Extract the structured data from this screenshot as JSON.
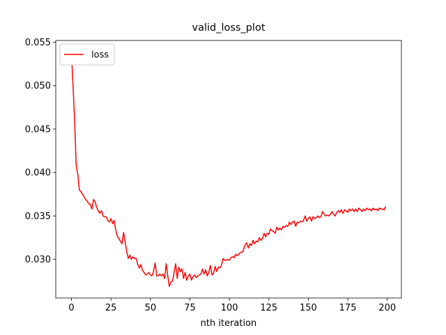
{
  "chart_data": {
    "type": "line",
    "title": "valid_loss_plot",
    "x_label": "nth iteration",
    "legend": "upper left",
    "grid": false,
    "x": [
      0,
      1,
      2,
      3,
      4,
      5,
      6,
      7,
      8,
      9,
      10,
      11,
      12,
      13,
      14,
      15,
      16,
      17,
      18,
      19,
      20,
      21,
      22,
      23,
      24,
      25,
      26,
      27,
      28,
      29,
      30,
      31,
      32,
      33,
      34,
      35,
      36,
      37,
      38,
      39,
      40,
      41,
      42,
      43,
      44,
      45,
      46,
      47,
      48,
      49,
      50,
      51,
      52,
      53,
      54,
      55,
      56,
      57,
      58,
      59,
      60,
      61,
      62,
      63,
      64,
      65,
      66,
      67,
      68,
      69,
      70,
      71,
      72,
      73,
      74,
      75,
      76,
      77,
      78,
      79,
      80,
      81,
      82,
      83,
      84,
      85,
      86,
      87,
      88,
      89,
      90,
      91,
      92,
      93,
      94,
      95,
      96,
      97,
      98,
      99,
      100,
      101,
      102,
      103,
      104,
      105,
      106,
      107,
      108,
      109,
      110,
      111,
      112,
      113,
      114,
      115,
      116,
      117,
      118,
      119,
      120,
      121,
      122,
      123,
      124,
      125,
      126,
      127,
      128,
      129,
      130,
      131,
      132,
      133,
      134,
      135,
      136,
      137,
      138,
      139,
      140,
      141,
      142,
      143,
      144,
      145,
      146,
      147,
      148,
      149,
      150,
      151,
      152,
      153,
      154,
      155,
      156,
      157,
      158,
      159,
      160,
      161,
      162,
      163,
      164,
      165,
      166,
      167,
      168,
      169,
      170,
      171,
      172,
      173,
      174,
      175,
      176,
      177,
      178,
      179,
      180,
      181,
      182,
      183,
      184,
      185,
      186,
      187,
      188,
      189,
      190,
      191,
      192,
      193,
      194,
      195,
      196,
      197,
      198,
      199
    ],
    "series": [
      {
        "name": "loss",
        "color": "#ff0000",
        "values": [
          0.0538,
          0.05,
          0.046,
          0.0408,
          0.0398,
          0.038,
          0.0378,
          0.0375,
          0.0372,
          0.0369,
          0.0367,
          0.0364,
          0.0363,
          0.0358,
          0.0369,
          0.0366,
          0.036,
          0.0356,
          0.0353,
          0.0356,
          0.035,
          0.0349,
          0.0349,
          0.0345,
          0.0343,
          0.0347,
          0.0341,
          0.0345,
          0.0334,
          0.0327,
          0.0324,
          0.0321,
          0.0318,
          0.0331,
          0.032,
          0.0309,
          0.0301,
          0.0305,
          0.03,
          0.0303,
          0.0301,
          0.0301,
          0.0294,
          0.029,
          0.0294,
          0.0287,
          0.0285,
          0.0282,
          0.0283,
          0.0285,
          0.0282,
          0.0281,
          0.0286,
          0.0296,
          0.0281,
          0.0281,
          0.0283,
          0.0281,
          0.0283,
          0.0278,
          0.0295,
          0.0281,
          0.0269,
          0.0274,
          0.0275,
          0.0285,
          0.0295,
          0.0278,
          0.0291,
          0.0286,
          0.0289,
          0.0278,
          0.0285,
          0.0276,
          0.0281,
          0.0283,
          0.0276,
          0.028,
          0.0282,
          0.0279,
          0.0281,
          0.0282,
          0.0283,
          0.0289,
          0.0283,
          0.0288,
          0.0281,
          0.0285,
          0.0293,
          0.0282,
          0.0284,
          0.0292,
          0.0286,
          0.0291,
          0.029,
          0.0293,
          0.0301,
          0.0299,
          0.0299,
          0.03,
          0.0299,
          0.0302,
          0.0303,
          0.0302,
          0.0306,
          0.0304,
          0.0306,
          0.0308,
          0.0308,
          0.0311,
          0.0317,
          0.0319,
          0.0313,
          0.0318,
          0.0316,
          0.0322,
          0.0318,
          0.0321,
          0.032,
          0.0325,
          0.0322,
          0.0324,
          0.033,
          0.0326,
          0.033,
          0.0329,
          0.0335,
          0.0333,
          0.0332,
          0.033,
          0.0337,
          0.0334,
          0.0336,
          0.0334,
          0.0338,
          0.0337,
          0.0339,
          0.0338,
          0.0343,
          0.034,
          0.0343,
          0.0344,
          0.0338,
          0.0343,
          0.0342,
          0.0344,
          0.0343,
          0.0345,
          0.035,
          0.0344,
          0.0347,
          0.0349,
          0.0344,
          0.0349,
          0.0347,
          0.0348,
          0.035,
          0.0348,
          0.0349,
          0.0355,
          0.0352,
          0.035,
          0.0351,
          0.035,
          0.0352,
          0.0355,
          0.0352,
          0.035,
          0.0354,
          0.0356,
          0.0354,
          0.0357,
          0.0353,
          0.0357,
          0.0356,
          0.0354,
          0.0358,
          0.0356,
          0.0358,
          0.0355,
          0.0358,
          0.0355,
          0.0359,
          0.0357,
          0.0355,
          0.0358,
          0.0356,
          0.0359,
          0.0357,
          0.0358,
          0.0356,
          0.0359,
          0.0357,
          0.0358,
          0.0356,
          0.0359,
          0.0358,
          0.0358,
          0.0357,
          0.0361
        ]
      }
    ],
    "xlim": [
      -9.95,
      208.95
    ],
    "xticks": [
      0,
      25,
      50,
      75,
      100,
      125,
      150,
      175,
      200
    ],
    "ylim": [
      0.02555,
      0.0552
    ],
    "yticks": [
      {
        "value": 0.03,
        "label": "0.030"
      },
      0.035,
      {
        "value": 0.04,
        "label": "0.040"
      },
      0.045,
      {
        "value": 0.05,
        "label": "0.050"
      },
      0.055
    ]
  }
}
